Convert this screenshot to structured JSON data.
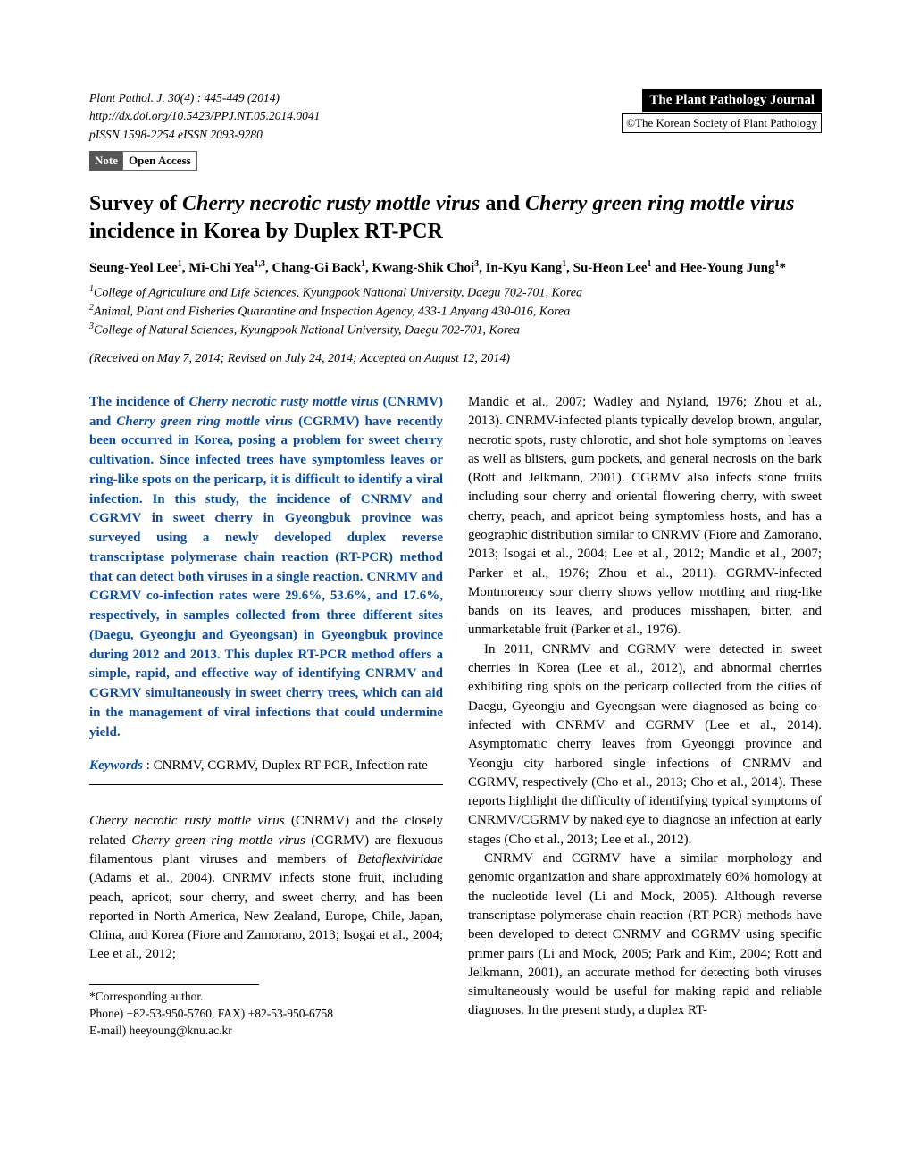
{
  "header": {
    "citation": "Plant Pathol. J. 30(4) : 445-449 (2014)",
    "doi": "http://dx.doi.org/10.5423/PPJ.NT.05.2014.0041",
    "issn": "pISSN 1598-2254   eISSN 2093-9280",
    "journal_name": "The Plant Pathology Journal",
    "society": "©The Korean Society of Plant Pathology",
    "note_badge": "Note",
    "open_access": "Open Access"
  },
  "title": {
    "prefix": "Survey of ",
    "species1": "Cherry necrotic rusty mottle virus",
    "mid": " and ",
    "species2": "Cherry green ring mottle virus",
    "suffix": " incidence in Korea by Duplex RT-PCR"
  },
  "authors": {
    "a1": "Seung-Yeol Lee",
    "s1": "1",
    "a2": ", Mi-Chi Yea",
    "s2": "1,3",
    "a3": ", Chang-Gi Back",
    "s3": "1",
    "a4": ", Kwang-Shik Choi",
    "s4": "3",
    "a5": ", In-Kyu Kang",
    "s5": "1",
    "a6": ", Su-Heon Lee",
    "s6": "1",
    "a7": " and Hee-Young Jung",
    "s7": "1",
    "star": "*"
  },
  "affiliations": {
    "aff1_num": "1",
    "aff1": "College of Agriculture and Life Sciences, Kyungpook National University, Daegu 702-701, Korea",
    "aff2_num": "2",
    "aff2": "Animal, Plant and Fisheries Quarantine and Inspection Agency, 433-1 Anyang 430-016, Korea",
    "aff3_num": "3",
    "aff3": "College of Natural Sciences, Kyungpook National University, Daegu 702-701, Korea"
  },
  "dates": "(Received on May 7, 2014; Revised on July 24, 2014; Accepted on August 12, 2014)",
  "abstract": {
    "p1": "The incidence of ",
    "sp1": "Cherry necrotic rusty mottle virus",
    "p2": " (CNRMV) and ",
    "sp2": "Cherry green ring mottle virus",
    "p3": " (CGRMV) have recently been occurred in Korea, posing a problem for sweet cherry cultivation. Since infected trees have symptomless leaves or ring-like spots on the pericarp, it is difficult to identify a viral infection. In this study, the incidence of CNRMV and CGRMV in sweet cherry in Gyeongbuk province was surveyed using a newly developed duplex reverse transcriptase polymerase chain reaction (RT-PCR) method that can detect both viruses in a single reaction. CNRMV and CGRMV co-infection rates were 29.6%, 53.6%, and 17.6%, respectively, in samples collected from three different sites (Daegu, Gyeongju and Gyeongsan) in Gyeongbuk province during 2012 and 2013. This duplex RT-PCR method offers a simple, rapid, and effective way of identifying CNRMV and CGRMV simultaneously in sweet cherry trees, which can aid in the management of viral infections that could undermine yield."
  },
  "keywords": {
    "label": "Keywords",
    "colon": " : ",
    "text": "CNRMV, CGRMV, Duplex RT-PCR, Infection rate"
  },
  "body": {
    "col1_p1a": "Cherry necrotic rusty mottle virus",
    "col1_p1b": " (CNRMV) and the closely related ",
    "col1_p1c": "Cherry green ring mottle virus",
    "col1_p1d": " (CGRMV) are flexuous filamentous plant viruses and members of ",
    "col1_p1e": "Betaflexiviridae",
    "col1_p1f": " (Adams et al., 2004). CNRMV infects stone fruit, including peach, apricot, sour cherry, and sweet cherry, and has been reported in North America, New Zealand, Europe, Chile, Japan, China, and Korea (Fiore and Zamorano, 2013; Isogai et al., 2004; Lee et al., 2012;",
    "col2_p1": "Mandic et al., 2007; Wadley and Nyland, 1976; Zhou et al., 2013). CNRMV-infected plants typically develop brown, angular, necrotic spots, rusty chlorotic, and shot hole symptoms on leaves as well as blisters, gum pockets, and general necrosis on the bark (Rott and Jelkmann, 2001). CGRMV also infects stone fruits including sour cherry and oriental flowering cherry, with sweet cherry, peach, and apricot being symptomless hosts, and has a geographic distribution similar to CNRMV (Fiore and Zamorano, 2013; Isogai et al., 2004; Lee et al., 2012; Mandic et al., 2007; Parker et al., 1976; Zhou et al., 2011). CGRMV-infected Montmorency sour cherry shows yellow mottling and ring-like bands on its leaves, and produces misshapen, bitter, and unmarketable fruit (Parker et al., 1976).",
    "col2_p2": "In 2011, CNRMV and CGRMV were detected in sweet cherries in Korea (Lee et al., 2012), and abnormal cherries exhibiting ring spots on the pericarp collected from the cities of Daegu, Gyeongju and Gyeongsan were diagnosed as being co-infected with CNRMV and CGRMV (Lee et al., 2014). Asymptomatic cherry leaves from Gyeonggi province and Yeongju city harbored single infections of CNRMV and CGRMV, respectively (Cho et al., 2013; Cho et al., 2014). These reports highlight the difficulty of identifying typical symptoms of CNRMV/CGRMV by naked eye to diagnose an infection at early stages (Cho et al., 2013; Lee et al., 2012).",
    "col2_p3": "CNRMV and CGRMV have a similar morphology and genomic organization and share approximately 60% homology at the nucleotide level (Li and Mock, 2005). Although reverse transcriptase polymerase chain reaction (RT-PCR) methods have been developed to detect CNRMV and CGRMV using specific primer pairs (Li and Mock, 2005; Park and Kim, 2004; Rott and Jelkmann, 2001), an accurate method for detecting both viruses simultaneously would be useful for making rapid and reliable diagnoses. In the present study, a duplex RT-"
  },
  "footer": {
    "corresponding": "*Corresponding author.",
    "phone": "Phone) +82-53-950-5760, FAX) +82-53-950-6758",
    "email": "E-mail) heeyoung@knu.ac.kr"
  },
  "style": {
    "abstract_color": "#0d4da1",
    "keywords_color": "#0d4da1",
    "text_color": "#000000",
    "background": "#ffffff",
    "body_fontsize": 15,
    "title_fontsize": 24
  }
}
